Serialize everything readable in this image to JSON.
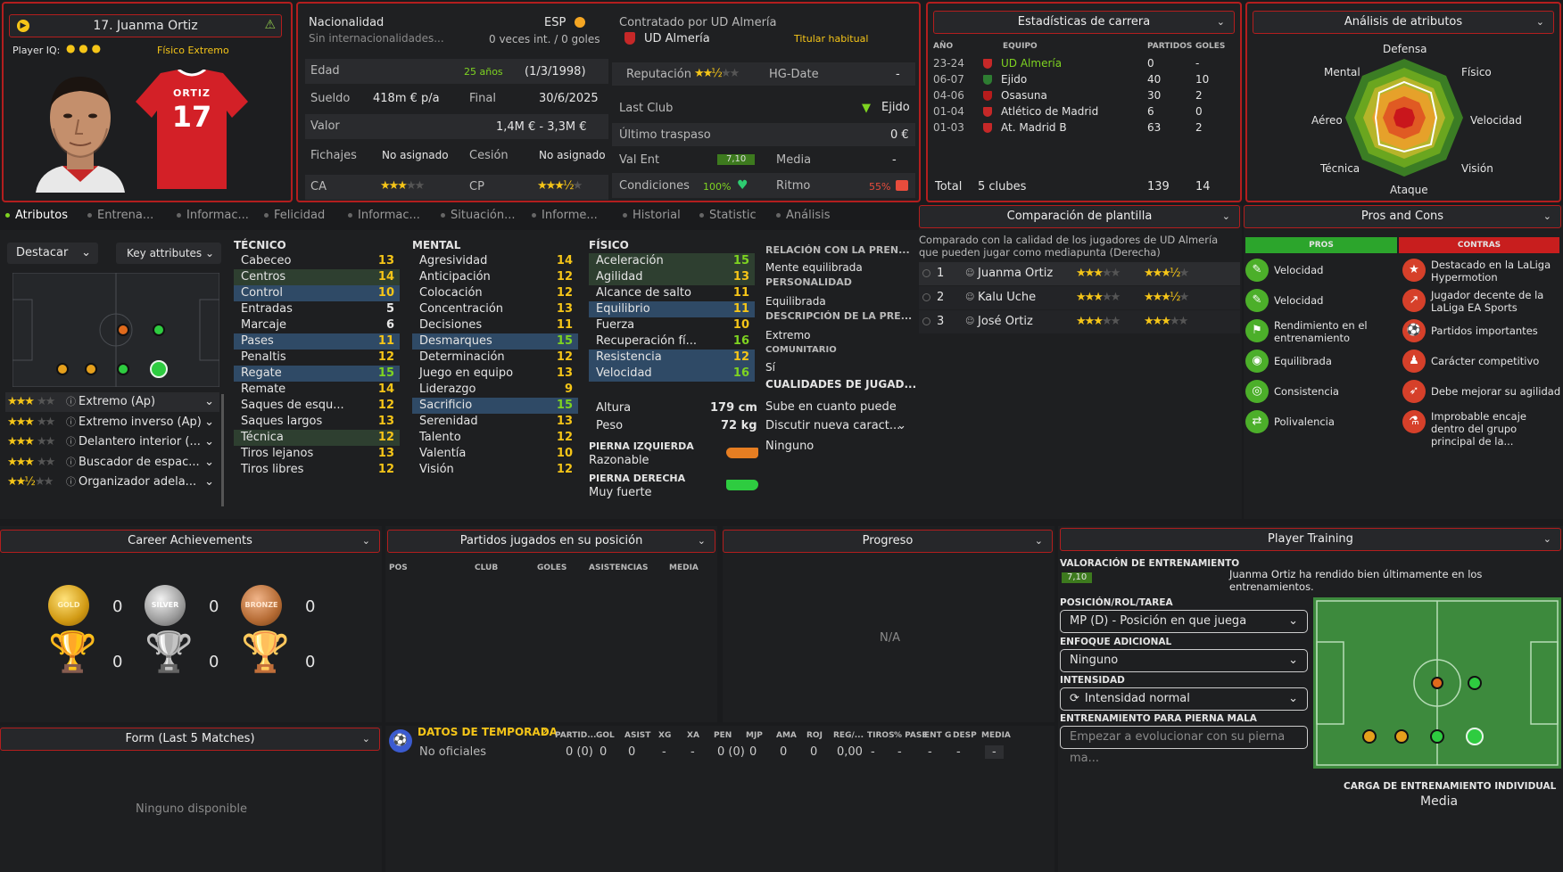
{
  "player": {
    "name": "17. Juanma Ortiz",
    "iq_label": "Player IQ:",
    "iq_type": "Físico Extremo",
    "shirt_name": "ORTIZ",
    "shirt_number": "17"
  },
  "info": {
    "nat_label": "Nacionalidad",
    "nat_value": "ESP",
    "nat_sub": "Sin internacionalidades...",
    "caps": "0 veces int. / 0 goles",
    "contract_label": "Contratado por UD Almería",
    "club": "UD Almería",
    "role_status": "Titular habitual",
    "age_label": "Edad",
    "age_value": "25 años",
    "dob": "(1/3/1998)",
    "wage_label": "Sueldo",
    "wage_value": "418m € p/a",
    "end_label": "Final",
    "end_value": "30/6/2025",
    "value_label": "Valor",
    "value_value": "1,4M € - 3,3M €",
    "fichajes_label": "Fichajes",
    "fichajes_value": "No asignado",
    "cesion_label": "Cesión",
    "cesion_value": "No asignado",
    "ca_label": "CA",
    "cp_label": "CP",
    "rep_label": "Reputación",
    "hg_label": "HG-Date",
    "hg_value": "-",
    "lastclub_label": "Last Club",
    "lastclub_value": "Ejido",
    "lasttransfer_label": "Último traspaso",
    "lasttransfer_value": "0 €",
    "valent_label": "Val Ent",
    "valent_value": "7,10",
    "media_label": "Media",
    "media_value": "-",
    "cond_label": "Condiciones",
    "cond_value": "100%",
    "ritmo_label": "Ritmo",
    "ritmo_value": "55%"
  },
  "career": {
    "title": "Estadísticas de carrera",
    "h_year": "AÑO",
    "h_team": "EQUIPO",
    "h_apps": "PARTIDOS",
    "h_goals": "GOLES",
    "rows": [
      {
        "year": "23-24",
        "team": "UD Almería",
        "apps": "0",
        "goals": "-"
      },
      {
        "year": "06-07",
        "team": "Ejido",
        "apps": "40",
        "goals": "10"
      },
      {
        "year": "04-06",
        "team": "Osasuna",
        "apps": "30",
        "goals": "2"
      },
      {
        "year": "01-04",
        "team": "Atlético de Madrid",
        "apps": "6",
        "goals": "0"
      },
      {
        "year": "01-03",
        "team": "At. Madrid B",
        "apps": "63",
        "goals": "2"
      }
    ],
    "total_label": "Total",
    "total_clubs": "5 clubes",
    "total_apps": "139",
    "total_goals": "14"
  },
  "analysis": {
    "title": "Análisis de atributos",
    "labels": [
      "Defensa",
      "Físico",
      "Velocidad",
      "Visión",
      "Ataque",
      "Técnica",
      "Aéreo",
      "Mental"
    ]
  },
  "tabs": [
    "Atributos",
    "Entrena...",
    "Informac...",
    "Felicidad",
    "Informac...",
    "Situación...",
    "Informe...",
    "Historial",
    "Statistic",
    "Análisis"
  ],
  "left": {
    "highlight_label": "Destacar",
    "key_label": "Key attributes",
    "roles": [
      {
        "name": "Extremo (Ap)",
        "stars": 3
      },
      {
        "name": "Extremo inverso (Ap)",
        "stars": 3
      },
      {
        "name": "Delantero interior (...",
        "stars": 3
      },
      {
        "name": "Buscador de espac...",
        "stars": 3
      },
      {
        "name": "Organizador adela...",
        "stars": 2.5
      }
    ]
  },
  "tecnico": {
    "title": "TÉCNICO",
    "items": [
      {
        "n": "Cabeceo",
        "v": "13"
      },
      {
        "n": "Centros",
        "v": "14"
      },
      {
        "n": "Control",
        "v": "10"
      },
      {
        "n": "Entradas",
        "v": "5"
      },
      {
        "n": "Marcaje",
        "v": "6"
      },
      {
        "n": "Pases",
        "v": "11"
      },
      {
        "n": "Penaltis",
        "v": "12"
      },
      {
        "n": "Regate",
        "v": "15"
      },
      {
        "n": "Remate",
        "v": "14"
      },
      {
        "n": "Saques de esqu...",
        "v": "12"
      },
      {
        "n": "Saques largos",
        "v": "13"
      },
      {
        "n": "Técnica",
        "v": "12"
      },
      {
        "n": "Tiros lejanos",
        "v": "13"
      },
      {
        "n": "Tiros libres",
        "v": "12"
      }
    ]
  },
  "mental": {
    "title": "MENTAL",
    "items": [
      {
        "n": "Agresividad",
        "v": "14"
      },
      {
        "n": "Anticipación",
        "v": "12"
      },
      {
        "n": "Colocación",
        "v": "12"
      },
      {
        "n": "Concentración",
        "v": "13"
      },
      {
        "n": "Decisiones",
        "v": "11"
      },
      {
        "n": "Desmarques",
        "v": "15"
      },
      {
        "n": "Determinación",
        "v": "12"
      },
      {
        "n": "Juego en equipo",
        "v": "13"
      },
      {
        "n": "Liderazgo",
        "v": "9"
      },
      {
        "n": "Sacrificio",
        "v": "15"
      },
      {
        "n": "Serenidad",
        "v": "13"
      },
      {
        "n": "Talento",
        "v": "12"
      },
      {
        "n": "Valentía",
        "v": "10"
      },
      {
        "n": "Visión",
        "v": "12"
      }
    ]
  },
  "fisico": {
    "title": "FÍSICO",
    "items": [
      {
        "n": "Aceleración",
        "v": "15"
      },
      {
        "n": "Agilidad",
        "v": "13"
      },
      {
        "n": "Alcance de salto",
        "v": "11"
      },
      {
        "n": "Equilibrio",
        "v": "11"
      },
      {
        "n": "Fuerza",
        "v": "10"
      },
      {
        "n": "Recuperación fí...",
        "v": "16"
      },
      {
        "n": "Resistencia",
        "v": "12"
      },
      {
        "n": "Velocidad",
        "v": "16"
      }
    ],
    "height_label": "Altura",
    "height": "179 cm",
    "weight_label": "Peso",
    "weight": "72 kg",
    "left_foot_label": "PIERNA IZQUIERDA",
    "left_foot": "Razonable",
    "right_foot_label": "PIERNA DERECHA",
    "right_foot": "Muy fuerte"
  },
  "relation": {
    "t1": "RELACIÓN CON LA PREN...",
    "v1": "Mente equilibrada",
    "t2": "PERSONALIDAD",
    "v2": "Equilibrada",
    "t3": "DESCRIPCIÓN DE LA PRE...",
    "v3": "Extremo",
    "t4": "COMUNITARIO",
    "v4": "Sí",
    "t5": "CUALIDADES DE JUGAD...",
    "v5a": "Sube en cuanto puede",
    "v5b": "Discutir nueva caract...",
    "v5c": "Ninguno"
  },
  "squad": {
    "title": "Comparación de plantilla",
    "desc": "Comparado con la calidad de los jugadores de UD Almería que pueden jugar como mediapunta (Derecha)",
    "rows": [
      {
        "pos": "1",
        "name": "Juanma Ortiz"
      },
      {
        "pos": "2",
        "name": "Kalu Uche"
      },
      {
        "pos": "3",
        "name": "José Ortiz"
      }
    ]
  },
  "proscons": {
    "title": "Pros and Cons",
    "pros_label": "PROS",
    "cons_label": "CONTRAS",
    "pros": [
      "Velocidad",
      "Velocidad",
      "Rendimiento en el entrenamiento",
      "Equilibrada",
      "Consistencia",
      "Polivalencia"
    ],
    "cons": [
      "Destacado en la LaLiga Hypermotion",
      "Jugador decente de la LaLiga EA Sports",
      "Partidos importantes",
      "Carácter competitivo",
      "Debe mejorar su agilidad",
      "Improbable encaje dentro del grupo principal de la..."
    ]
  },
  "achievements": {
    "title": "Career Achievements",
    "gold": "GOLD",
    "silver": "SILVER",
    "bronze": "BRONZE",
    "counts": [
      "0",
      "0",
      "0",
      "0",
      "0",
      "0"
    ]
  },
  "position_games": {
    "title": "Partidos jugados en su posición",
    "cols": [
      "POS",
      "CLUB",
      "GOLES",
      "ASISTENCIAS",
      "MEDIA"
    ]
  },
  "progress": {
    "title": "Progreso",
    "na": "N/A"
  },
  "training": {
    "title": "Player Training",
    "val_label": "VALORACIÓN DE ENTRENAMIENTO",
    "val_value": "7,10",
    "val_text": "Juanma Ortiz ha rendido bien últimamente en los entrenamientos.",
    "pos_label": "POSICIÓN/ROL/TAREA",
    "pos_value": "MP (D) - Posición en que juega",
    "focus_label": "ENFOQUE ADICIONAL",
    "focus_value": "Ninguno",
    "int_label": "INTENSIDAD",
    "int_value": "Intensidad normal",
    "weak_label": "ENTRENAMIENTO PARA PIERNA MALA",
    "weak_placeholder": "Empezar a evolucionar con su pierna ma...",
    "load_label": "CARGA DE ENTRENAMIENTO INDIVIDUAL",
    "load_value": "Media"
  },
  "form": {
    "title": "Form (Last 5 Matches)",
    "empty": "Ninguno disponible"
  },
  "season": {
    "title": "DATOS DE TEMPORADA",
    "cols": [
      "PARTID...",
      "GOL",
      "ASIST",
      "XG",
      "XA",
      "PEN",
      "MJP",
      "AMA",
      "ROJ",
      "REG/...",
      "TIROS",
      "% PASE",
      "ENT G",
      "DESP",
      "MEDIA"
    ],
    "row_label": "No oficiales",
    "row": [
      "0 (0)",
      "0",
      "0",
      "-",
      "-",
      "0 (0)",
      "0",
      "0",
      "0",
      "0,00",
      "-",
      "-",
      "-",
      "-",
      "-"
    ]
  }
}
